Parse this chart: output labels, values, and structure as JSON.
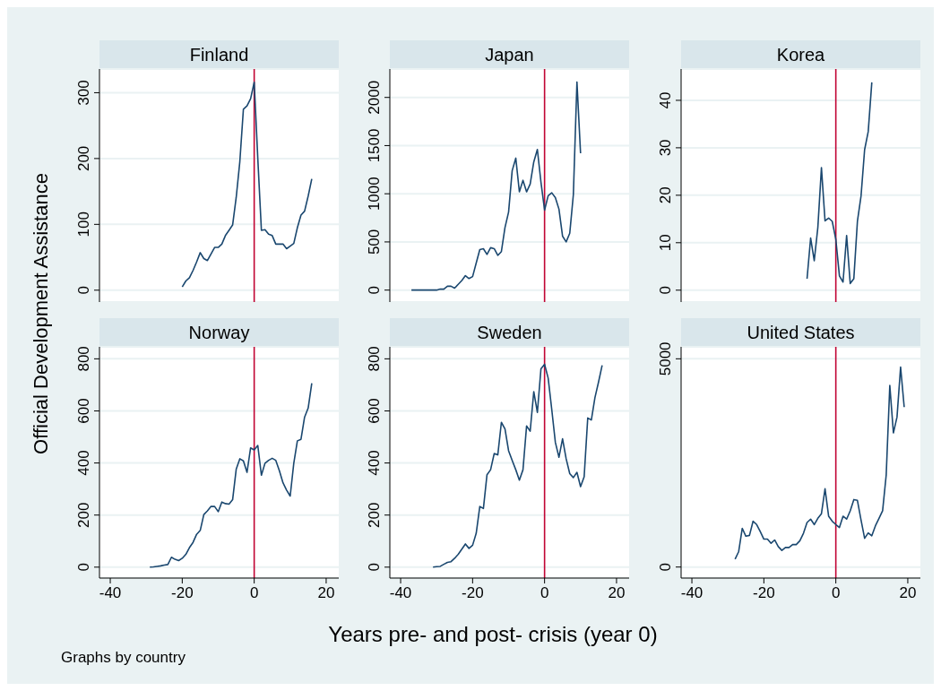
{
  "chart_data": [
    {
      "type": "line",
      "title": "Finland",
      "ylabel": "Official Development Assistance",
      "x": [
        -20,
        -19,
        -18,
        -17,
        -16,
        -15,
        -14,
        -13,
        -12,
        -11,
        -10,
        -9,
        -8,
        -7,
        -6,
        -5,
        -4,
        -3,
        -2,
        -1,
        0,
        1,
        2,
        3,
        4,
        5,
        6,
        7,
        8,
        9,
        10,
        11,
        12,
        13,
        14,
        15,
        16
      ],
      "series": [
        {
          "color": "#1a476f",
          "values": [
            5,
            14,
            19,
            30,
            43,
            57,
            48,
            45,
            55,
            65,
            65,
            70,
            83,
            91,
            99,
            141,
            195,
            275,
            280,
            291,
            316,
            200,
            91,
            92,
            85,
            83,
            70,
            70,
            70,
            63,
            67,
            71,
            95,
            114,
            120,
            143,
            169
          ]
        }
      ],
      "xlim": [
        -43,
        23.5
      ],
      "xticks": [
        -40,
        -20,
        0,
        20
      ],
      "ylim": [
        -18,
        336
      ],
      "yticks": [
        0,
        100,
        200,
        300
      ],
      "grid": "y",
      "tick_labels": "y",
      "ref_lines": [
        {
          "axis": "x",
          "value": 0,
          "color": "#c10534"
        }
      ]
    },
    {
      "type": "line",
      "title": "Japan",
      "x": [
        -37,
        -36,
        -35,
        -34,
        -33,
        -32,
        -31,
        -30,
        -29,
        -28,
        -27,
        -26,
        -25,
        -24,
        -23,
        -22,
        -21,
        -20,
        -19,
        -18,
        -17,
        -16,
        -15,
        -14,
        -13,
        -12,
        -11,
        -10,
        -9,
        -8,
        -7,
        -6,
        -5,
        -4,
        -3,
        -2,
        -1,
        0,
        1,
        2,
        3,
        4,
        5,
        6,
        7,
        8,
        9,
        10
      ],
      "series": [
        {
          "color": "#1a476f",
          "values": [
            0,
            0,
            0,
            0,
            0,
            0,
            0,
            0,
            10,
            10,
            40,
            40,
            20,
            60,
            100,
            150,
            120,
            140,
            280,
            420,
            430,
            370,
            440,
            430,
            360,
            400,
            650,
            810,
            1240,
            1370,
            1020,
            1140,
            1020,
            1100,
            1330,
            1460,
            1120,
            830,
            980,
            1010,
            960,
            840,
            560,
            500,
            590,
            990,
            2160,
            1420
          ]
        }
      ],
      "xlim": [
        -43,
        23.5
      ],
      "xticks": [
        -40,
        -20,
        0,
        20
      ],
      "ylim": [
        -124,
        2295
      ],
      "yticks": [
        0,
        500,
        1000,
        1500,
        2000
      ],
      "grid": "y",
      "tick_labels": "y",
      "ref_lines": [
        {
          "axis": "x",
          "value": 0,
          "color": "#c10534"
        }
      ]
    },
    {
      "type": "line",
      "title": "Korea",
      "x": [
        -8,
        -7,
        -6,
        -5,
        -4,
        -3,
        -2,
        -1,
        0,
        1,
        2,
        3,
        4,
        5,
        6,
        7,
        8,
        9,
        10
      ],
      "series": [
        {
          "color": "#1a476f",
          "values": [
            2.4,
            11,
            6.2,
            13.2,
            25.8,
            14.6,
            15.2,
            14.5,
            10.7,
            3,
            1.7,
            11.5,
            1.4,
            2.4,
            14.5,
            19.8,
            29.6,
            33.4,
            43.8
          ]
        }
      ],
      "xlim": [
        -43,
        23.5
      ],
      "xticks": [
        -40,
        -20,
        0,
        20
      ],
      "ylim": [
        -2.5,
        46.6
      ],
      "yticks": [
        0,
        10,
        20,
        30,
        40
      ],
      "grid": "y",
      "tick_labels": "y",
      "ref_lines": [
        {
          "axis": "x",
          "value": 0,
          "color": "#c10534"
        }
      ]
    },
    {
      "type": "line",
      "title": "Norway",
      "annotations": [
        "Graphs by country"
      ],
      "x": [
        -29,
        -28,
        -27,
        -26,
        -25,
        -24,
        -23,
        -22,
        -21,
        -20,
        -19,
        -18,
        -17,
        -16,
        -15,
        -14,
        -13,
        -12,
        -11,
        -10,
        -9,
        -8,
        -7,
        -6,
        -5,
        -4,
        -3,
        -2,
        -1,
        0,
        1,
        2,
        3,
        4,
        5,
        6,
        7,
        8,
        9,
        10,
        11,
        12,
        13,
        14,
        15,
        16
      ],
      "series": [
        {
          "color": "#1a476f",
          "values": [
            0,
            1,
            3,
            5,
            8,
            10,
            38,
            30,
            25,
            34,
            49,
            75,
            95,
            126,
            141,
            202,
            216,
            233,
            233,
            213,
            250,
            244,
            242,
            259,
            376,
            416,
            408,
            364,
            458,
            450,
            467,
            353,
            399,
            410,
            418,
            410,
            370,
            324,
            296,
            273,
            399,
            485,
            491,
            576,
            611,
            706
          ]
        }
      ],
      "xlim": [
        -43,
        23.5
      ],
      "xticks": [
        -40,
        -20,
        0,
        20
      ],
      "ylim": [
        -42,
        846
      ],
      "yticks": [
        0,
        200,
        400,
        600,
        800
      ],
      "grid": "y",
      "ref_lines": [
        {
          "axis": "x",
          "value": 0,
          "color": "#c10534"
        }
      ]
    },
    {
      "type": "line",
      "title": "Sweden",
      "xlabel": "Years pre- and post- crisis (year 0)",
      "x": [
        -31,
        -30,
        -29,
        -28,
        -27,
        -26,
        -25,
        -24,
        -23,
        -22,
        -21,
        -20,
        -19,
        -18,
        -17,
        -16,
        -15,
        -14,
        -13,
        -12,
        -11,
        -10,
        -9,
        -8,
        -7,
        -6,
        -5,
        -4,
        -3,
        -2,
        -1,
        0,
        1,
        2,
        3,
        4,
        5,
        6,
        7,
        8,
        9,
        10,
        11,
        12,
        13,
        14,
        15,
        16
      ],
      "series": [
        {
          "color": "#1a476f",
          "values": [
            0,
            2,
            3,
            11,
            18,
            21,
            34,
            49,
            69,
            89,
            72,
            84,
            130,
            233,
            225,
            355,
            374,
            436,
            431,
            556,
            531,
            447,
            410,
            374,
            334,
            374,
            542,
            522,
            674,
            594,
            762,
            779,
            726,
            605,
            479,
            422,
            493,
            416,
            359,
            344,
            364,
            309,
            347,
            573,
            565,
            651,
            711,
            775
          ]
        }
      ],
      "xlim": [
        -43,
        23.5
      ],
      "xticks": [
        -40,
        -20,
        0,
        20
      ],
      "ylim": [
        -42,
        846
      ],
      "yticks": [
        0,
        200,
        400,
        600,
        800
      ],
      "grid": "y",
      "ref_lines": [
        {
          "axis": "x",
          "value": 0,
          "color": "#c10534"
        }
      ]
    },
    {
      "type": "line",
      "title": "United States",
      "x": [
        -28,
        -27,
        -26,
        -25,
        -24,
        -23,
        -22,
        -21,
        -20,
        -19,
        -18,
        -17,
        -16,
        -15,
        -14,
        -13,
        -12,
        -11,
        -10,
        -9,
        -8,
        -7,
        -6,
        -5,
        -4,
        -3,
        -2,
        -1,
        0,
        1,
        2,
        3,
        4,
        5,
        6,
        7,
        8,
        9,
        10,
        11,
        12,
        13,
        14,
        15,
        16,
        17,
        18,
        19
      ],
      "series": [
        {
          "color": "#1a476f",
          "values": [
            190,
            370,
            930,
            740,
            760,
            1100,
            1020,
            850,
            670,
            670,
            570,
            650,
            490,
            400,
            470,
            470,
            540,
            540,
            630,
            810,
            1070,
            1150,
            1020,
            1170,
            1280,
            1880,
            1220,
            1100,
            1020,
            950,
            1220,
            1150,
            1350,
            1620,
            1600,
            1130,
            690,
            820,
            750,
            990,
            1170,
            1350,
            2210,
            4360,
            3220,
            3600,
            4800,
            3840
          ]
        }
      ],
      "xlim": [
        -43,
        23.5
      ],
      "xticks": [
        -40,
        -20,
        0,
        20
      ],
      "ylim": [
        -265,
        5287
      ],
      "yticks": [
        0,
        5000
      ],
      "grid": "y",
      "ref_lines": [
        {
          "axis": "x",
          "value": 0,
          "color": "#c10534"
        }
      ]
    }
  ]
}
